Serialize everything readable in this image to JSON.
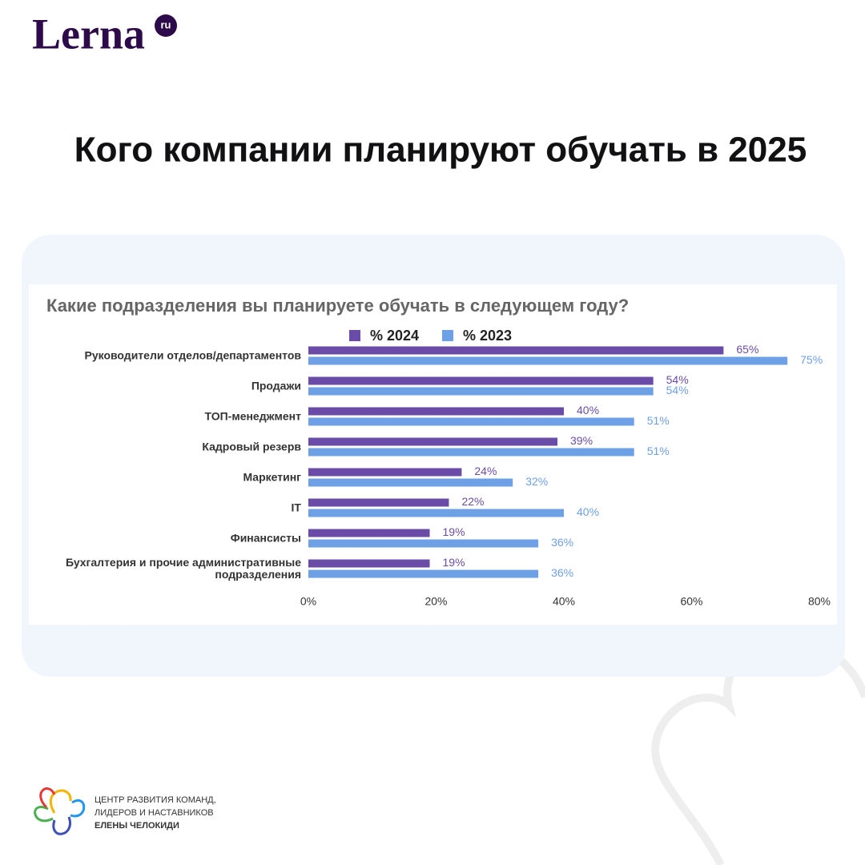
{
  "logo": {
    "name": "Lerna",
    "suffix": "ru"
  },
  "headline": "Кого компании планируют обучать в 2025",
  "chart_data": {
    "type": "bar",
    "orientation": "horizontal",
    "title": "Какие подразделения вы планируете обучать в следующем году?",
    "categories": [
      "Руководители отделов/департаментов",
      "Продажи",
      "ТОП-менеджмент",
      "Кадровый резерв",
      "Маркетинг",
      "IT",
      "Финансисты",
      "Бухгалтерия и прочие административные подразделения"
    ],
    "series": [
      {
        "name": "% 2024",
        "color": "#6a4ca8",
        "values": [
          65,
          54,
          40,
          39,
          24,
          22,
          19,
          19
        ],
        "value_labels": [
          "65%",
          "54%",
          "40%",
          "39%",
          "24%",
          "22%",
          "19%",
          "19%"
        ]
      },
      {
        "name": "% 2023",
        "color": "#6ea0e6",
        "values": [
          75,
          54,
          51,
          51,
          32,
          40,
          36,
          36
        ],
        "value_labels": [
          "75%",
          "54%",
          "51%",
          "51%",
          "32%",
          "40%",
          "36%",
          "36%"
        ]
      }
    ],
    "xlim": [
      0,
      80
    ],
    "xticks": [
      {
        "value": 0,
        "label": "0%"
      },
      {
        "value": 20,
        "label": "20%"
      },
      {
        "value": 40,
        "label": "40%"
      },
      {
        "value": 60,
        "label": "60%"
      },
      {
        "value": 80,
        "label": "80%"
      }
    ],
    "legend": "top"
  },
  "footer": {
    "lines": [
      "ЦЕНТР РАЗВИТИЯ КОМАНД,",
      "ЛИДЕРОВ И НАСТАВНИКОВ",
      "ЕЛЕНЫ ЧЕЛОКИДИ"
    ]
  }
}
